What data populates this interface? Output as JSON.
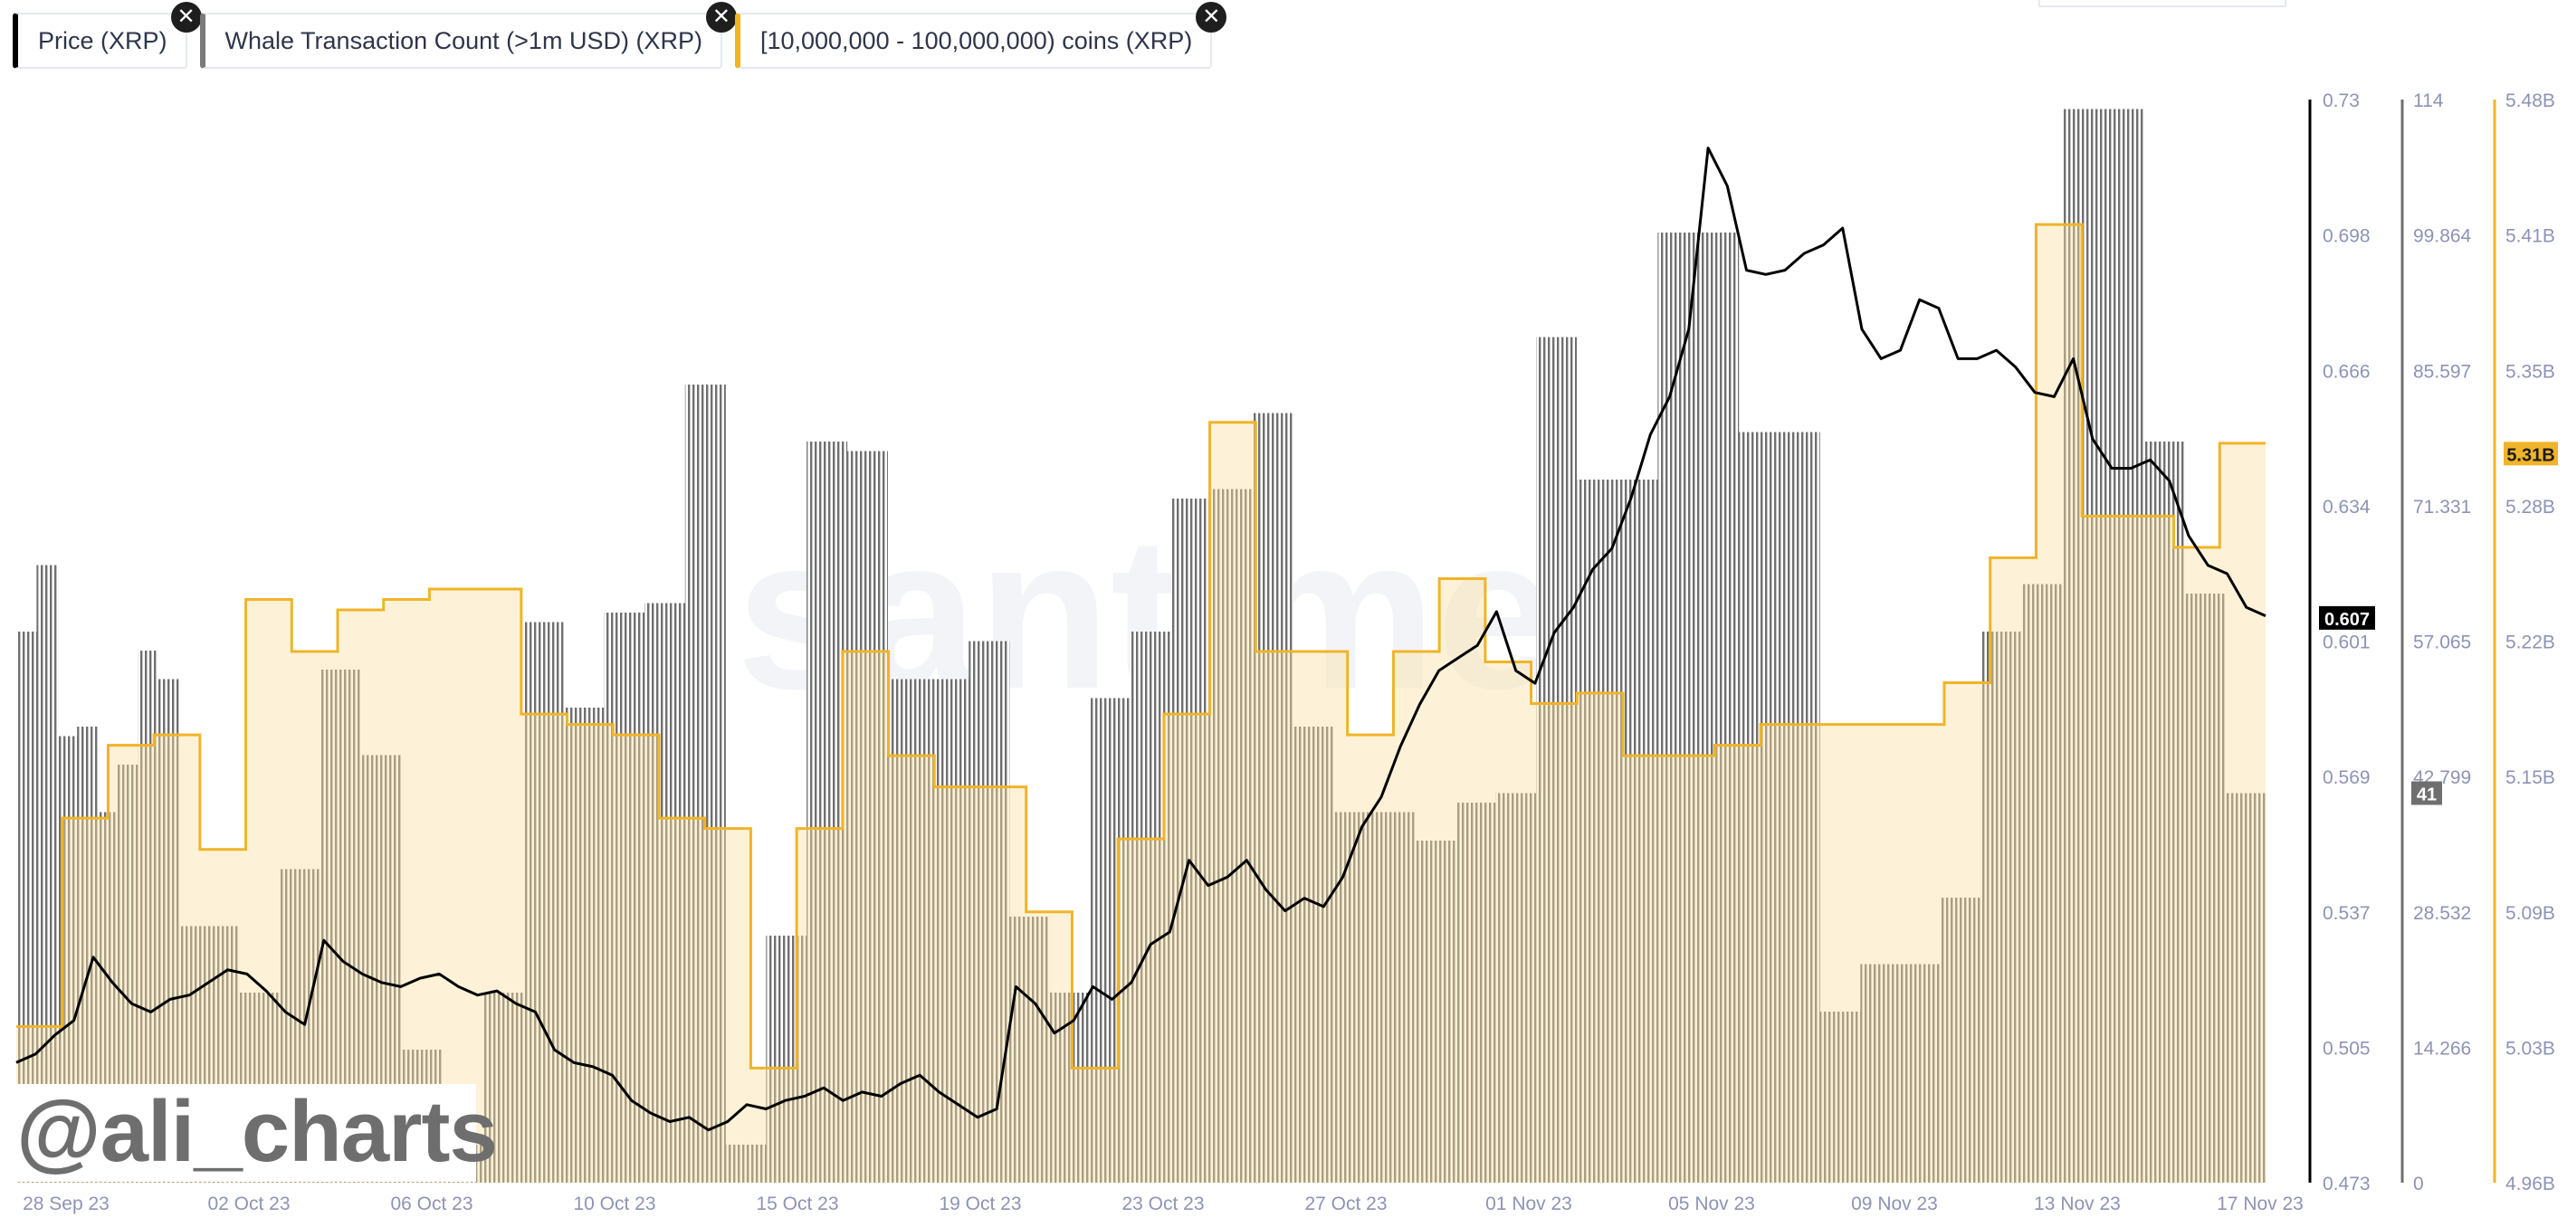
{
  "legend": [
    {
      "label": "Price (XRP)",
      "color": "#000000"
    },
    {
      "label": "Whale Transaction Count (>1m USD) (XRP)",
      "color": "#7a7a7a"
    },
    {
      "label": "[10,000,000 - 100,000,000) coins (XRP)",
      "color": "#f0b429"
    }
  ],
  "close_glyph": "✕",
  "handle": "@ali_charts",
  "watermark": "santiment",
  "chart_data": {
    "type": "line",
    "x_tick_labels": [
      "28 Sep 23",
      "02 Oct 23",
      "06 Oct 23",
      "10 Oct 23",
      "15 Oct 23",
      "19 Oct 23",
      "23 Oct 23",
      "27 Oct 23",
      "01 Nov 23",
      "05 Nov 23",
      "09 Nov 23",
      "13 Nov 23",
      "17 Nov 23"
    ],
    "axes": {
      "price": {
        "ticks": [
          "0.73",
          "0.698",
          "0.666",
          "0.634",
          "0.601",
          "0.569",
          "0.537",
          "0.505",
          "0.473"
        ],
        "min": 0.473,
        "max": 0.73,
        "current_label": "0.607",
        "current": 0.607,
        "color": "#000000"
      },
      "whale": {
        "ticks": [
          "114",
          "99.864",
          "85.597",
          "71.331",
          "57.065",
          "42.799",
          "28.532",
          "14.266",
          "0"
        ],
        "min": 0,
        "max": 114,
        "current_label": "41",
        "current": 41,
        "color": "#6f6f6f"
      },
      "holders": {
        "ticks": [
          "5.48B",
          "5.41B",
          "5.35B",
          "5.28B",
          "5.22B",
          "5.15B",
          "5.09B",
          "5.03B",
          "4.96B"
        ],
        "min": 4.96,
        "max": 5.48,
        "current_label": "5.31B",
        "current": 5.31,
        "color": "#f0b429"
      }
    },
    "series": [
      {
        "name": "Whale Transaction Count (>1m USD) (XRP)",
        "type": "bar",
        "values": [
          58,
          65,
          47,
          48,
          39,
          44,
          56,
          53,
          27,
          27,
          27,
          20,
          20,
          33,
          33,
          54,
          54,
          45,
          45,
          14,
          14,
          4,
          4,
          20,
          20,
          59,
          59,
          50,
          50,
          60,
          60,
          61,
          61,
          84,
          84,
          4,
          4,
          26,
          26,
          78,
          78,
          77,
          77,
          53,
          53,
          53,
          53,
          57,
          57,
          28,
          28,
          20,
          20,
          51,
          51,
          58,
          58,
          72,
          72,
          73,
          73,
          81,
          81,
          48,
          48,
          39,
          39,
          39,
          39,
          36,
          36,
          40,
          40,
          41,
          41,
          89,
          89,
          74,
          74,
          74,
          74,
          100,
          100,
          100,
          100,
          79,
          79,
          79,
          79,
          18,
          18,
          23,
          23,
          23,
          23,
          30,
          30,
          58,
          58,
          63,
          63,
          113,
          113,
          113,
          113,
          78,
          78,
          62,
          62,
          41,
          41
        ],
        "color": "#6f6f6f"
      },
      {
        "name": "[10,000,000 - 100,000,000) coins (XRP)",
        "type": "step",
        "values": [
          5.035,
          5.135,
          5.17,
          5.175,
          5.12,
          5.24,
          5.215,
          5.235,
          5.24,
          5.245,
          5.245,
          5.185,
          5.18,
          5.175,
          5.135,
          5.13,
          5.015,
          5.13,
          5.215,
          5.165,
          5.15,
          5.15,
          5.09,
          5.015,
          5.125,
          5.185,
          5.325,
          5.215,
          5.215,
          5.175,
          5.215,
          5.25,
          5.21,
          5.19,
          5.195,
          5.165,
          5.165,
          5.17,
          5.18,
          5.18,
          5.18,
          5.18,
          5.2,
          5.26,
          5.42,
          5.28,
          5.28,
          5.265,
          5.315
        ],
        "color": "#f0b429"
      },
      {
        "name": "Price (XRP)",
        "type": "line",
        "values": [
          0.5015,
          0.5035,
          0.508,
          0.5115,
          0.5265,
          0.5205,
          0.5155,
          0.5135,
          0.5165,
          0.5175,
          0.5205,
          0.5235,
          0.5225,
          0.5185,
          0.5135,
          0.5105,
          0.5305,
          0.5255,
          0.5225,
          0.5205,
          0.5195,
          0.5215,
          0.5225,
          0.5195,
          0.5175,
          0.5185,
          0.5155,
          0.5135,
          0.5045,
          0.5015,
          0.5005,
          0.4985,
          0.4925,
          0.4895,
          0.4875,
          0.4885,
          0.4855,
          0.4875,
          0.4915,
          0.4905,
          0.4925,
          0.4935,
          0.4955,
          0.4925,
          0.4945,
          0.4935,
          0.4965,
          0.4985,
          0.4945,
          0.4915,
          0.4885,
          0.4905,
          0.5195,
          0.5155,
          0.5085,
          0.5115,
          0.5195,
          0.5165,
          0.5205,
          0.5295,
          0.5325,
          0.5495,
          0.5435,
          0.5455,
          0.5495,
          0.5425,
          0.5375,
          0.5405,
          0.5385,
          0.5455,
          0.5575,
          0.5645,
          0.5765,
          0.5865,
          0.5945,
          0.5975,
          0.6005,
          0.6085,
          0.5945,
          0.5915,
          0.6035,
          0.6095,
          0.6185,
          0.6235,
          0.6355,
          0.6505,
          0.6595,
          0.6755,
          0.7185,
          0.7095,
          0.6895,
          0.6885,
          0.6895,
          0.6935,
          0.6955,
          0.6995,
          0.6755,
          0.6685,
          0.6705,
          0.6825,
          0.6805,
          0.6685,
          0.6685,
          0.6705,
          0.6665,
          0.6605,
          0.6595,
          0.6685,
          0.6495,
          0.6425,
          0.6425,
          0.6445,
          0.6395,
          0.6265,
          0.6195,
          0.6175,
          0.6095,
          0.6075
        ],
        "color": "#000000"
      }
    ],
    "grid": false,
    "legend_position": "top-left"
  }
}
